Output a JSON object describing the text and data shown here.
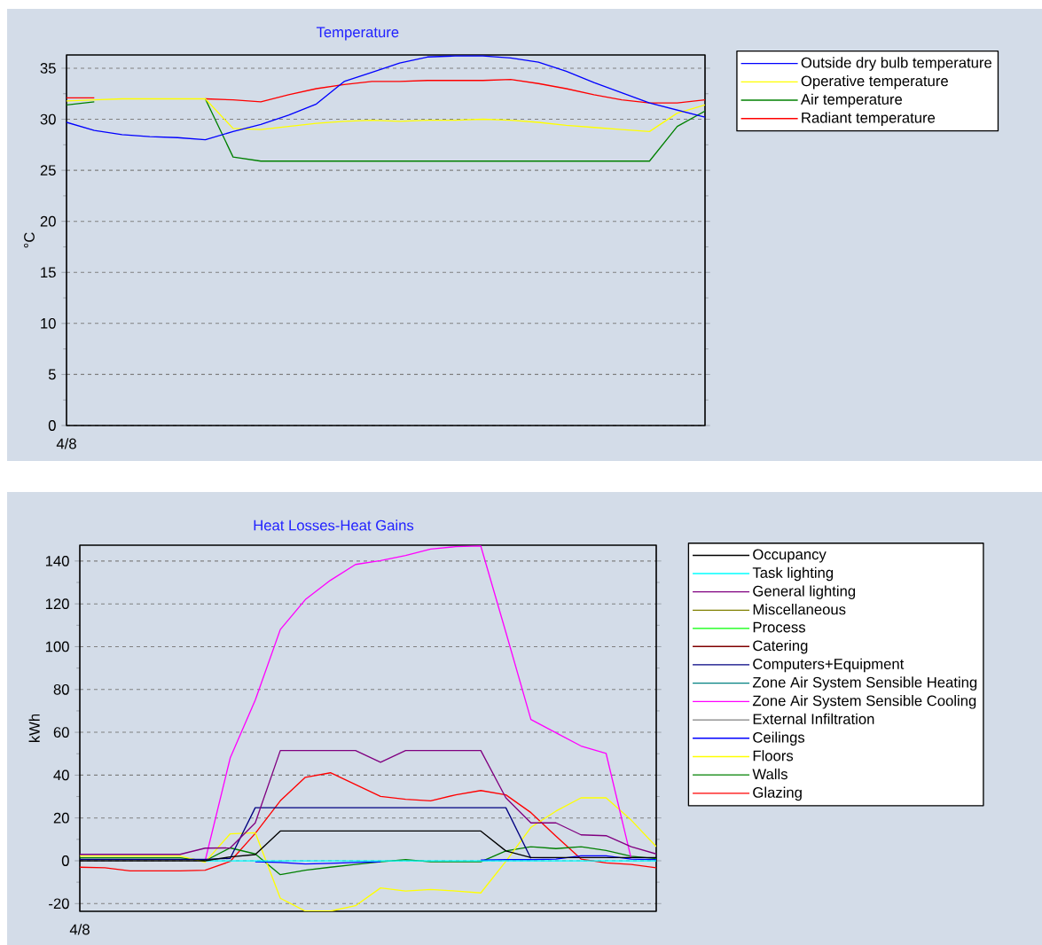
{
  "chart_data": [
    {
      "type": "line",
      "title": "Temperature",
      "ylabel": "°C",
      "categories": [
        "4/8",
        null,
        null,
        null,
        null,
        null,
        null,
        null,
        null,
        null,
        null,
        null,
        null,
        null,
        null,
        null,
        null,
        null,
        null,
        null,
        null,
        null,
        null,
        null
      ],
      "ylim": [
        0,
        36.3
      ],
      "yticks": [
        0,
        5,
        10,
        15,
        20,
        25,
        30,
        35
      ],
      "grid": "y",
      "legend": "right",
      "series": [
        {
          "name": "Outside dry bulb temperature",
          "color": "#0000ff",
          "values": [
            29.7,
            28.9,
            28.5,
            28.3,
            28.2,
            28.0,
            28.8,
            29.5,
            30.4,
            31.5,
            33.7,
            34.6,
            35.5,
            36.1,
            36.2,
            36.2,
            36.0,
            35.6,
            34.7,
            33.6,
            32.6,
            31.6,
            30.9,
            30.2
          ]
        },
        {
          "name": "Operative temperature",
          "color": "#ffff00",
          "values": [
            31.8,
            31.9,
            32.0,
            32.0,
            32.0,
            32.0,
            29.1,
            29.0,
            29.3,
            29.6,
            29.8,
            29.9,
            29.8,
            29.9,
            29.9,
            30.0,
            29.9,
            29.7,
            29.4,
            29.2,
            29.0,
            28.8,
            30.6,
            31.4
          ]
        },
        {
          "name": "Air temperature",
          "color": "#008000",
          "values": [
            31.4,
            31.7,
            null,
            null,
            null,
            32.0,
            26.3,
            25.9,
            25.9,
            25.9,
            25.9,
            25.9,
            25.9,
            25.9,
            25.9,
            25.9,
            25.9,
            25.9,
            25.9,
            25.9,
            25.9,
            25.9,
            29.3,
            30.8
          ]
        },
        {
          "name": "Radiant temperature",
          "color": "#ff0000",
          "values": [
            32.1,
            32.1,
            null,
            null,
            null,
            32.0,
            31.9,
            31.7,
            32.4,
            33.0,
            33.4,
            33.7,
            33.7,
            33.8,
            33.8,
            33.8,
            33.9,
            33.5,
            33.0,
            32.4,
            31.9,
            31.6,
            31.6,
            31.9
          ]
        }
      ]
    },
    {
      "type": "line",
      "title": "Heat Losses-Heat Gains",
      "ylabel": "kWh",
      "categories": [
        "4/8",
        null,
        null,
        null,
        null,
        null,
        null,
        null,
        null,
        null,
        null,
        null,
        null,
        null,
        null,
        null,
        null,
        null,
        null,
        null,
        null,
        null,
        null,
        null
      ],
      "ylim": [
        -23.6,
        147.4
      ],
      "yticks": [
        -20,
        0,
        20,
        40,
        60,
        80,
        100,
        120,
        140
      ],
      "grid": "y",
      "legend": "right",
      "series": [
        {
          "name": "Occupancy",
          "color": "#000000",
          "values": [
            0,
            0,
            0,
            0,
            0,
            0,
            1.8,
            2.9,
            13.9,
            13.9,
            13.9,
            13.9,
            13.9,
            13.9,
            13.9,
            13.9,
            13.9,
            4.6,
            1.5,
            1.5,
            1.5,
            1.5,
            1.5,
            1.5
          ]
        },
        {
          "name": "Task lighting",
          "color": "#00ffff",
          "values": [
            null,
            null,
            null,
            null,
            null,
            0,
            0,
            0,
            0,
            0,
            0,
            0,
            0,
            0,
            0,
            0,
            0,
            0,
            0,
            0,
            0,
            0,
            0,
            0
          ]
        },
        {
          "name": "General lighting",
          "color": "#800080",
          "values": [
            3,
            3,
            3,
            3,
            3,
            5.9,
            6,
            17.7,
            51.5,
            51.5,
            51.5,
            51.5,
            46,
            51.5,
            51.5,
            51.5,
            51.5,
            29.4,
            17.7,
            17.7,
            12.1,
            11.7,
            6.6,
            3.2
          ]
        },
        {
          "name": "Miscellaneous",
          "color": "#808000",
          "values": [
            null,
            null,
            null,
            null,
            null,
            null,
            null,
            null,
            null,
            null,
            null,
            null,
            null,
            null,
            null,
            null,
            null,
            null,
            null,
            null,
            null,
            null,
            null,
            null
          ]
        },
        {
          "name": "Process",
          "color": "#00ff00",
          "values": [
            null,
            null,
            null,
            null,
            null,
            null,
            null,
            null,
            null,
            null,
            null,
            null,
            null,
            null,
            null,
            null,
            null,
            null,
            null,
            null,
            null,
            null,
            null,
            null
          ]
        },
        {
          "name": "Catering",
          "color": "#800000",
          "values": [
            null,
            null,
            null,
            null,
            null,
            null,
            null,
            null,
            null,
            null,
            null,
            null,
            null,
            null,
            null,
            null,
            null,
            null,
            null,
            null,
            null,
            null,
            null,
            null
          ]
        },
        {
          "name": "Computers+Equipment",
          "color": "#000080",
          "values": [
            0.7,
            0.7,
            0.7,
            0.7,
            0.7,
            0.7,
            1.1,
            24.8,
            24.8,
            24.8,
            24.8,
            24.8,
            24.8,
            24.8,
            24.8,
            24.8,
            24.8,
            24.8,
            1.1,
            null,
            null,
            null,
            null,
            null
          ]
        },
        {
          "name": "Zone Air System Sensible Heating",
          "color": "#008080",
          "values": [
            null,
            null,
            null,
            null,
            null,
            null,
            null,
            null,
            null,
            null,
            null,
            null,
            null,
            null,
            null,
            null,
            null,
            null,
            null,
            null,
            null,
            null,
            null,
            null
          ]
        },
        {
          "name": "Zone Air System Sensible Cooling",
          "color": "#ff00ff",
          "values": [
            null,
            null,
            null,
            null,
            null,
            0,
            48,
            75,
            108,
            122,
            131,
            138.4,
            140.2,
            142.6,
            145.6,
            146.7,
            147,
            106.7,
            66,
            59.8,
            53.6,
            50.1,
            1.1,
            null
          ]
        },
        {
          "name": "External Infiltration",
          "color": "#808080",
          "values": [
            null,
            null,
            null,
            null,
            null,
            null,
            null,
            null,
            null,
            null,
            null,
            null,
            null,
            null,
            null,
            null,
            null,
            null,
            null,
            null,
            null,
            null,
            null,
            null
          ]
        },
        {
          "name": "Ceilings",
          "color": "#0000ff",
          "values": [
            null,
            null,
            null,
            null,
            null,
            null,
            null,
            -0.5,
            -0.8,
            -1.5,
            -1.2,
            -0.8,
            -0.5,
            null,
            null,
            null,
            0.3,
            0.5,
            0.5,
            0.8,
            2.3,
            2.3,
            0.8,
            0.5
          ]
        },
        {
          "name": "Floors",
          "color": "#ffff00",
          "values": [
            2.2,
            2.2,
            2.2,
            2.2,
            2.2,
            -0.7,
            12.6,
            13.1,
            -17.5,
            -23.5,
            -23.5,
            -21,
            -12.7,
            -14.1,
            -13.4,
            -14.1,
            -15,
            -0.3,
            15.6,
            23.2,
            29.4,
            29.4,
            19,
            6.6
          ]
        },
        {
          "name": "Walls",
          "color": "#008000",
          "values": [
            1.4,
            1.4,
            1.4,
            1.4,
            1.4,
            0,
            6,
            3.2,
            -6.5,
            -4.4,
            -3,
            -1.7,
            -0.5,
            0.5,
            -0.5,
            -0.5,
            -0.5,
            4.6,
            6.6,
            5.7,
            6.6,
            4.8,
            2.1,
            1
          ]
        },
        {
          "name": "Glazing",
          "color": "#ff0000",
          "values": [
            -3,
            -3.3,
            -4.7,
            -4.7,
            -4.7,
            -4.4,
            -0.3,
            12.8,
            28,
            39,
            41.1,
            35.6,
            30.1,
            28.7,
            28,
            30.8,
            32.8,
            30.8,
            22.5,
            11.5,
            0.8,
            -1,
            -1.7,
            -3.3
          ]
        }
      ]
    }
  ]
}
